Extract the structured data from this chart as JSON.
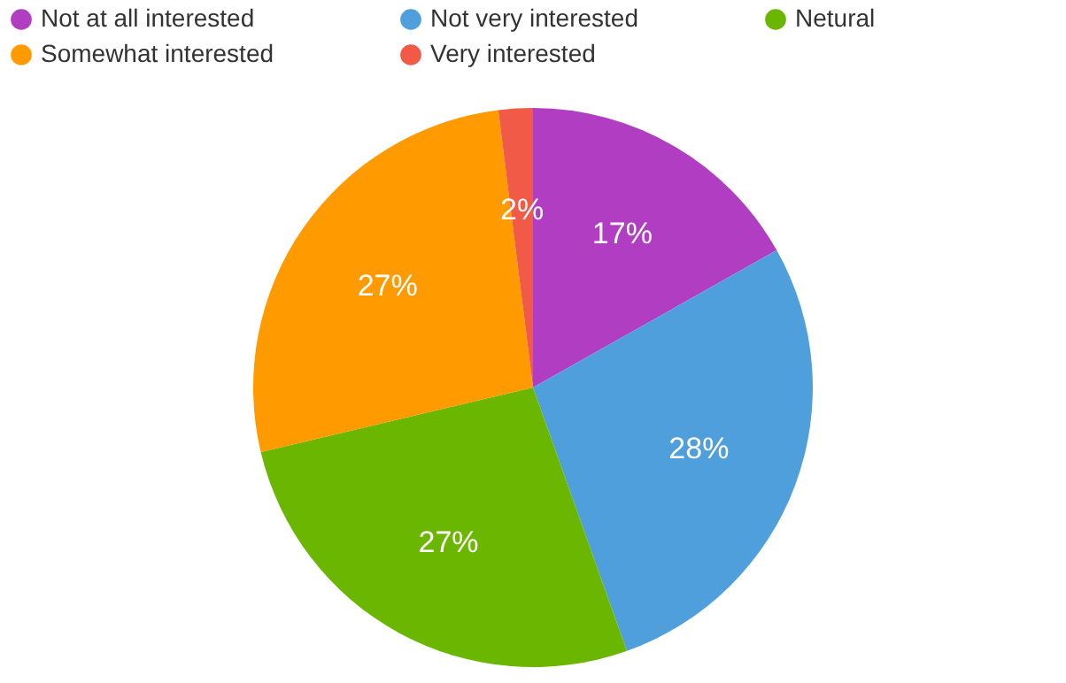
{
  "chart_data": {
    "type": "pie",
    "categories": [
      "Not at all interested",
      "Not very interested",
      "Netural",
      "Somewhat interested",
      "Very interested"
    ],
    "values": [
      17,
      28,
      27,
      27,
      2
    ],
    "colors": [
      "#b13ec2",
      "#4e9fdc",
      "#6ab600",
      "#ff9a00",
      "#f25a48"
    ],
    "value_labels": [
      "17%",
      "28%",
      "27%",
      "27%",
      "2%"
    ],
    "legend": "top"
  }
}
